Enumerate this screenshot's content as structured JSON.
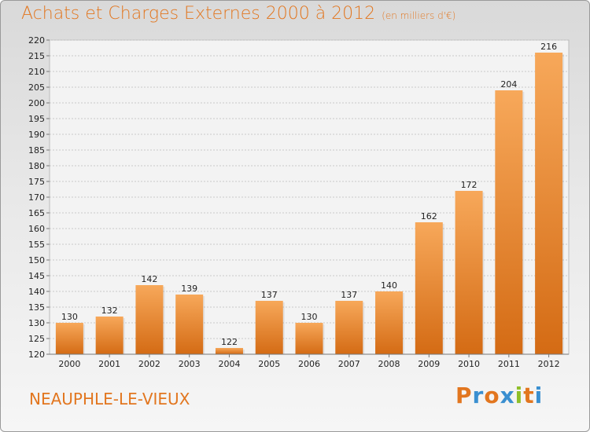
{
  "page": {
    "title": "Achats et Charges Externes 2000 à 2012",
    "units": "(en milliers d'€)",
    "place": "NEAUPHLE-LE-VIEUX",
    "logo": [
      "P",
      "r",
      "o",
      "x",
      "i",
      "t",
      "i"
    ]
  },
  "colors": {
    "accent": "#e2761f",
    "bar_light": "#f7a85a",
    "bar_dark": "#d46b14",
    "logo_letters": [
      "#e2761f",
      "#3a8fd0",
      "#e2761f",
      "#3a8fd0",
      "#8fbf2a",
      "#e2761f",
      "#3a8fd0"
    ]
  },
  "chart_data": {
    "type": "bar",
    "categories": [
      "2000",
      "2001",
      "2002",
      "2003",
      "2004",
      "2005",
      "2006",
      "2007",
      "2008",
      "2009",
      "2010",
      "2011",
      "2012"
    ],
    "values": [
      130,
      132,
      142,
      139,
      122,
      137,
      130,
      137,
      140,
      162,
      172,
      204,
      216
    ],
    "ylim": [
      120,
      220
    ],
    "yticks": [
      120,
      125,
      130,
      135,
      140,
      145,
      150,
      155,
      160,
      165,
      170,
      175,
      180,
      185,
      190,
      195,
      200,
      205,
      210,
      215,
      220
    ],
    "grid": true
  }
}
